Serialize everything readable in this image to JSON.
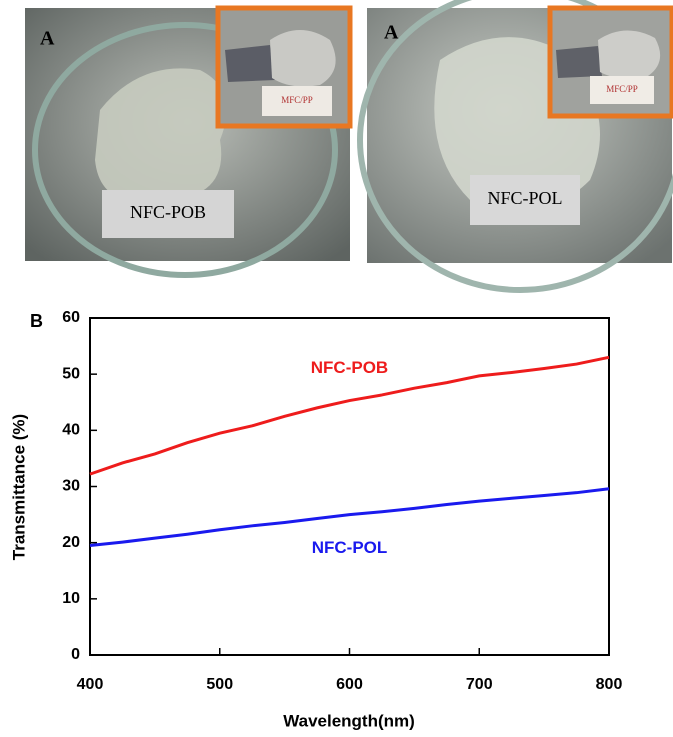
{
  "photos": [
    {
      "label": "A",
      "caption": "NFC-POB",
      "inset_text": "MFC/PP"
    },
    {
      "label": "A",
      "caption": "NFC-POL",
      "inset_text": "MFC/PP"
    }
  ],
  "chart_data": {
    "type": "line",
    "panel_label": "B",
    "x_label": "Wavelength(nm)",
    "y_label": "Transmittance (%)",
    "x": [
      400,
      425,
      450,
      475,
      500,
      525,
      550,
      575,
      600,
      625,
      650,
      675,
      700,
      725,
      750,
      775,
      800
    ],
    "series": [
      {
        "name": "NFC-POB",
        "color": "#ee1c1c",
        "values": [
          32.2,
          34.2,
          35.8,
          37.8,
          39.5,
          40.8,
          42.5,
          44,
          45.3,
          46.3,
          47.5,
          48.5,
          49.7,
          50.3,
          51,
          51.8,
          53
        ]
      },
      {
        "name": "NFC-POL",
        "color": "#1a1aee",
        "values": [
          19.5,
          20.1,
          20.8,
          21.5,
          22.3,
          23,
          23.6,
          24.3,
          25,
          25.5,
          26.1,
          26.8,
          27.4,
          27.9,
          28.4,
          28.9,
          29.6
        ]
      }
    ],
    "xlim": [
      400,
      800
    ],
    "xticks": [
      400,
      500,
      600,
      700,
      800
    ],
    "ylim": [
      0,
      60
    ],
    "yticks": [
      0,
      10,
      20,
      30,
      40,
      50,
      60
    ]
  }
}
